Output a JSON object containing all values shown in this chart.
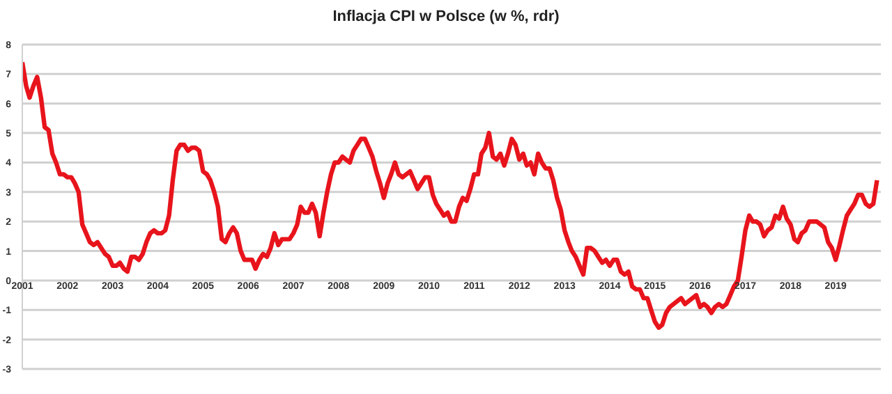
{
  "chart_data": {
    "type": "line",
    "title": "Inflacja CPI w Polsce (w %, rdr)",
    "x": [
      "2001-01",
      "2001-02",
      "2001-03",
      "2001-04",
      "2001-05",
      "2001-06",
      "2001-07",
      "2001-08",
      "2001-09",
      "2001-10",
      "2001-11",
      "2001-12",
      "2002-01",
      "2002-02",
      "2002-03",
      "2002-04",
      "2002-05",
      "2002-06",
      "2002-07",
      "2002-08",
      "2002-09",
      "2002-10",
      "2002-11",
      "2002-12",
      "2003-01",
      "2003-02",
      "2003-03",
      "2003-04",
      "2003-05",
      "2003-06",
      "2003-07",
      "2003-08",
      "2003-09",
      "2003-10",
      "2003-11",
      "2003-12",
      "2004-01",
      "2004-02",
      "2004-03",
      "2004-04",
      "2004-05",
      "2004-06",
      "2004-07",
      "2004-08",
      "2004-09",
      "2004-10",
      "2004-11",
      "2004-12",
      "2005-01",
      "2005-02",
      "2005-03",
      "2005-04",
      "2005-05",
      "2005-06",
      "2005-07",
      "2005-08",
      "2005-09",
      "2005-10",
      "2005-11",
      "2005-12",
      "2006-01",
      "2006-02",
      "2006-03",
      "2006-04",
      "2006-05",
      "2006-06",
      "2006-07",
      "2006-08",
      "2006-09",
      "2006-10",
      "2006-11",
      "2006-12",
      "2007-01",
      "2007-02",
      "2007-03",
      "2007-04",
      "2007-05",
      "2007-06",
      "2007-07",
      "2007-08",
      "2007-09",
      "2007-10",
      "2007-11",
      "2007-12",
      "2008-01",
      "2008-02",
      "2008-03",
      "2008-04",
      "2008-05",
      "2008-06",
      "2008-07",
      "2008-08",
      "2008-09",
      "2008-10",
      "2008-11",
      "2008-12",
      "2009-01",
      "2009-02",
      "2009-03",
      "2009-04",
      "2009-05",
      "2009-06",
      "2009-07",
      "2009-08",
      "2009-09",
      "2009-10",
      "2009-11",
      "2009-12",
      "2010-01",
      "2010-02",
      "2010-03",
      "2010-04",
      "2010-05",
      "2010-06",
      "2010-07",
      "2010-08",
      "2010-09",
      "2010-10",
      "2010-11",
      "2010-12",
      "2011-01",
      "2011-02",
      "2011-03",
      "2011-04",
      "2011-05",
      "2011-06",
      "2011-07",
      "2011-08",
      "2011-09",
      "2011-10",
      "2011-11",
      "2011-12",
      "2012-01",
      "2012-02",
      "2012-03",
      "2012-04",
      "2012-05",
      "2012-06",
      "2012-07",
      "2012-08",
      "2012-09",
      "2012-10",
      "2012-11",
      "2012-12",
      "2013-01",
      "2013-02",
      "2013-03",
      "2013-04",
      "2013-05",
      "2013-06",
      "2013-07",
      "2013-08",
      "2013-09",
      "2013-10",
      "2013-11",
      "2013-12",
      "2014-01",
      "2014-02",
      "2014-03",
      "2014-04",
      "2014-05",
      "2014-06",
      "2014-07",
      "2014-08",
      "2014-09",
      "2014-10",
      "2014-11",
      "2014-12",
      "2015-01",
      "2015-02",
      "2015-03",
      "2015-04",
      "2015-05",
      "2015-06",
      "2015-07",
      "2015-08",
      "2015-09",
      "2015-10",
      "2015-11",
      "2015-12",
      "2016-01",
      "2016-02",
      "2016-03",
      "2016-04",
      "2016-05",
      "2016-06",
      "2016-07",
      "2016-08",
      "2016-09",
      "2016-10",
      "2016-11",
      "2016-12",
      "2017-01",
      "2017-02",
      "2017-03",
      "2017-04",
      "2017-05",
      "2017-06",
      "2017-07",
      "2017-08",
      "2017-09",
      "2017-10",
      "2017-11",
      "2017-12",
      "2018-01",
      "2018-02",
      "2018-03",
      "2018-04",
      "2018-05",
      "2018-06",
      "2018-07",
      "2018-08",
      "2018-09",
      "2018-10",
      "2018-11",
      "2018-12",
      "2019-01",
      "2019-02",
      "2019-03",
      "2019-04",
      "2019-05",
      "2019-06",
      "2019-07",
      "2019-08",
      "2019-09",
      "2019-10",
      "2019-11",
      "2019-12"
    ],
    "series": [
      {
        "color": "#e8141c",
        "values": [
          7.4,
          6.6,
          6.2,
          6.6,
          6.9,
          6.2,
          5.2,
          5.1,
          4.3,
          4.0,
          3.6,
          3.6,
          3.5,
          3.5,
          3.3,
          3.0,
          1.9,
          1.6,
          1.3,
          1.2,
          1.3,
          1.1,
          0.9,
          0.8,
          0.5,
          0.5,
          0.6,
          0.4,
          0.3,
          0.8,
          0.8,
          0.7,
          0.9,
          1.3,
          1.6,
          1.7,
          1.6,
          1.6,
          1.7,
          2.2,
          3.4,
          4.4,
          4.6,
          4.6,
          4.4,
          4.5,
          4.5,
          4.4,
          3.7,
          3.6,
          3.4,
          3.0,
          2.5,
          1.4,
          1.3,
          1.6,
          1.8,
          1.6,
          1.0,
          0.7,
          0.7,
          0.7,
          0.4,
          0.7,
          0.9,
          0.8,
          1.1,
          1.6,
          1.2,
          1.4,
          1.4,
          1.4,
          1.6,
          1.9,
          2.5,
          2.3,
          2.3,
          2.6,
          2.3,
          1.5,
          2.3,
          3.0,
          3.6,
          4.0,
          4.0,
          4.2,
          4.1,
          4.0,
          4.4,
          4.6,
          4.8,
          4.8,
          4.5,
          4.2,
          3.7,
          3.3,
          2.8,
          3.3,
          3.6,
          4.0,
          3.6,
          3.5,
          3.6,
          3.7,
          3.4,
          3.1,
          3.3,
          3.5,
          3.5,
          2.9,
          2.6,
          2.4,
          2.2,
          2.3,
          2.0,
          2.0,
          2.5,
          2.8,
          2.7,
          3.1,
          3.6,
          3.6,
          4.3,
          4.5,
          5.0,
          4.2,
          4.1,
          4.3,
          3.9,
          4.3,
          4.8,
          4.6,
          4.1,
          4.3,
          3.9,
          4.0,
          3.6,
          4.3,
          4.0,
          3.8,
          3.8,
          3.4,
          2.8,
          2.4,
          1.7,
          1.3,
          1.0,
          0.8,
          0.5,
          0.2,
          1.1,
          1.1,
          1.0,
          0.8,
          0.6,
          0.7,
          0.5,
          0.7,
          0.7,
          0.3,
          0.2,
          0.3,
          -0.2,
          -0.3,
          -0.3,
          -0.6,
          -0.6,
          -1.0,
          -1.4,
          -1.6,
          -1.5,
          -1.1,
          -0.9,
          -0.8,
          -0.7,
          -0.6,
          -0.8,
          -0.7,
          -0.6,
          -0.5,
          -0.9,
          -0.8,
          -0.9,
          -1.1,
          -0.9,
          -0.8,
          -0.9,
          -0.8,
          -0.5,
          -0.2,
          0.0,
          0.8,
          1.7,
          2.2,
          2.0,
          2.0,
          1.9,
          1.5,
          1.7,
          1.8,
          2.2,
          2.1,
          2.5,
          2.1,
          1.9,
          1.4,
          1.3,
          1.6,
          1.7,
          2.0,
          2.0,
          2.0,
          1.9,
          1.8,
          1.3,
          1.1,
          0.7,
          1.2,
          1.7,
          2.2,
          2.4,
          2.6,
          2.9,
          2.9,
          2.6,
          2.5,
          2.6,
          3.4
        ]
      }
    ],
    "xlim": [
      "2001",
      "2020"
    ],
    "xticks": [
      "2001",
      "2002",
      "2003",
      "2004",
      "2005",
      "2006",
      "2007",
      "2008",
      "2009",
      "2010",
      "2011",
      "2012",
      "2013",
      "2014",
      "2015",
      "2016",
      "2017",
      "2018",
      "2019"
    ],
    "ylim": [
      -3,
      8
    ],
    "yticks": [
      -3,
      -2,
      -1,
      0,
      1,
      2,
      3,
      4,
      5,
      6,
      7,
      8
    ],
    "grid": "y",
    "legend": false,
    "marker": "none",
    "line_style": "solid"
  }
}
